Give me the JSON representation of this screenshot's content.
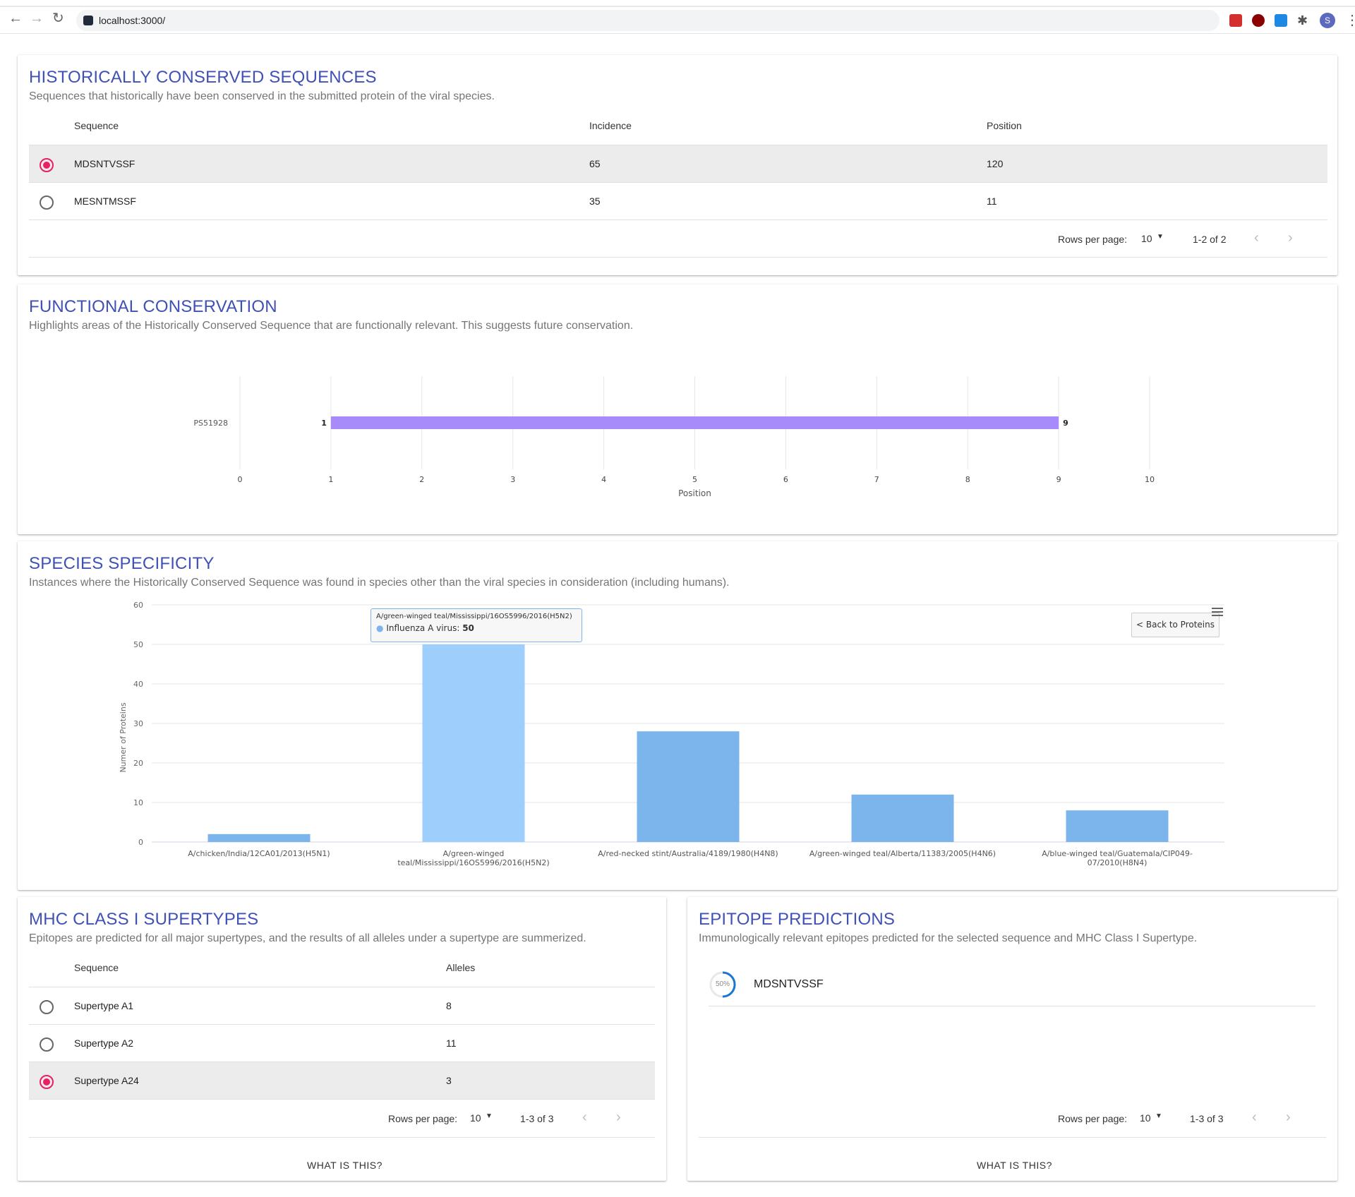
{
  "browser": {
    "url": "localhost:3000/",
    "avatar_letter": "S"
  },
  "conserved": {
    "title": "HISTORICALLY CONSERVED SEQUENCES",
    "subtitle": "Sequences that historically have been conserved in the submitted protein of the viral species.",
    "headers": {
      "sequence": "Sequence",
      "incidence": "Incidence",
      "position": "Position"
    },
    "rows": [
      {
        "sequence": "MDSNTVSSF",
        "incidence": "65",
        "position": "120",
        "selected": true
      },
      {
        "sequence": "MESNTMSSF",
        "incidence": "35",
        "position": "11",
        "selected": false
      }
    ],
    "rows_per_page_label": "Rows per page:",
    "rows_per_page": "10",
    "range": "1-2 of 2"
  },
  "functional": {
    "title": "FUNCTIONAL CONSERVATION",
    "subtitle": "Highlights areas of the Historically Conserved Sequence that are functionally relevant. This suggests future conservation.",
    "chart_data": {
      "type": "bar",
      "orientation": "horizontal-range",
      "categories": [
        "PS51928"
      ],
      "ranges": [
        {
          "category": "PS51928",
          "start": 1,
          "end": 9
        }
      ],
      "start_label": "1",
      "end_label": "9",
      "xlabel": "Position",
      "xlim": [
        0,
        10
      ],
      "xticks": [
        "0",
        "1",
        "2",
        "3",
        "4",
        "5",
        "6",
        "7",
        "8",
        "9",
        "10"
      ],
      "bar_color": "#a78bfa",
      "grid": true
    }
  },
  "species": {
    "title": "SPECIES SPECIFICITY",
    "subtitle": "Instances where the Historically Conserved Sequence was found in species other than the viral species in consideration (including humans).",
    "back_button": "< Back to Proteins",
    "chart_data": {
      "type": "bar",
      "categories": [
        "A/chicken/India/12CA01/2013(H5N1)",
        "A/green-winged teal/Mississippi/16OS5996/2016(H5N2)",
        "A/red-necked stint/Australia/4189/1980(H4N8)",
        "A/green-winged teal/Alberta/11383/2005(H4N6)",
        "A/blue-winged teal/Guatemala/CIP049-07/2010(H8N4)"
      ],
      "category_lines": [
        [
          "A/chicken/India/12CA01/2013(H5N1)"
        ],
        [
          "A/green-winged",
          "teal/Mississippi/16OS5996/2016(H5N2)"
        ],
        [
          "A/red-necked stint/Australia/4189/1980(H4N8)"
        ],
        [
          "A/green-winged teal/Alberta/11383/2005(H4N6)"
        ],
        [
          "A/blue-winged teal/Guatemala/CIP049-",
          "07/2010(H8N4)"
        ]
      ],
      "values": [
        2,
        50,
        28,
        12,
        8
      ],
      "ylabel": "Numer of Proteins",
      "ylim": [
        0,
        60
      ],
      "yticks": [
        "0",
        "10",
        "20",
        "30",
        "40",
        "50",
        "60"
      ],
      "bar_color": "#7cb5ec",
      "highlight_color": "#9ecefc",
      "highlight_index": 1,
      "grid": true,
      "tooltip": {
        "title": "A/green-winged teal/Mississippi/16OS5996/2016(H5N2)",
        "series": "Influenza A virus:",
        "value": "50"
      }
    }
  },
  "mhc": {
    "title": "MHC CLASS I SUPERTYPES",
    "subtitle": "Epitopes are predicted for all major supertypes, and the results of all alleles under a supertype are summerized.",
    "headers": {
      "sequence": "Sequence",
      "alleles": "Alleles"
    },
    "rows": [
      {
        "sequence": "Supertype A1",
        "alleles": "8",
        "selected": false
      },
      {
        "sequence": "Supertype A2",
        "alleles": "11",
        "selected": false
      },
      {
        "sequence": "Supertype A24",
        "alleles": "3",
        "selected": true
      }
    ],
    "rows_per_page_label": "Rows per page:",
    "rows_per_page": "10",
    "range": "1-3 of 3",
    "what_label": "WHAT IS THIS?"
  },
  "epitope": {
    "title": "EPITOPE PREDICTIONS",
    "subtitle": "Immunologically relevant epitopes predicted for the selected sequence and MHC Class I Supertype.",
    "item": {
      "progress_label": "50%",
      "progress": 0.5,
      "sequence": "MDSNTVSSF"
    },
    "rows_per_page_label": "Rows per page:",
    "rows_per_page": "10",
    "range": "1-3 of 3",
    "what_label": "WHAT IS THIS?"
  },
  "colors": {
    "title": "#3f51b5",
    "radio_selected": "#e91e63",
    "progress": "#1976d2"
  },
  "icons": {
    "back": "arrow-left-icon",
    "forward": "arrow-right-icon",
    "reload": "reload-icon",
    "menu": "hamburger-menu-icon",
    "prev_page": "chevron-left-icon",
    "next_page": "chevron-right-icon",
    "dropdown": "caret-down-icon"
  }
}
